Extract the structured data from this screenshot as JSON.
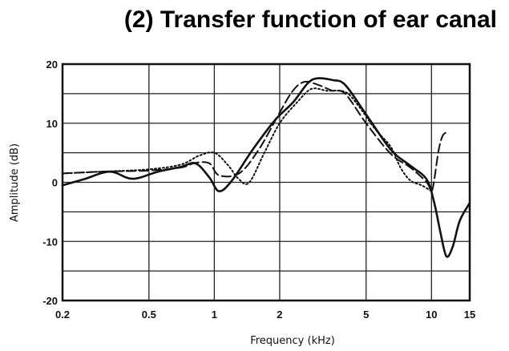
{
  "title": "(2) Transfer function of ear canal",
  "chart_data": {
    "type": "line",
    "title": "(2) Transfer function of ear canal",
    "xlabel": "Frequency (kHz)",
    "ylabel": "Amplitude (dB)",
    "xscale": "log",
    "xlim": [
      0.2,
      15
    ],
    "ylim": [
      -20,
      20
    ],
    "grid": true,
    "xticks": [
      0.2,
      0.5,
      1,
      2,
      5,
      10,
      15
    ],
    "xtick_labels": [
      "0.2",
      "0.5",
      "1",
      "2",
      "5",
      "10",
      "15"
    ],
    "yticks": [
      -20,
      -10,
      0,
      10,
      20
    ],
    "ytick_labels": [
      "-20",
      "-10",
      "0",
      "10",
      "20"
    ],
    "series": [
      {
        "style": "solid",
        "color": "#111111",
        "points": [
          [
            0.2,
            -0.5
          ],
          [
            0.25,
            0.5
          ],
          [
            0.33,
            1.8
          ],
          [
            0.42,
            0.6
          ],
          [
            0.55,
            1.8
          ],
          [
            0.7,
            2.6
          ],
          [
            0.82,
            3.2
          ],
          [
            0.95,
            0.8
          ],
          [
            1.05,
            -1.5
          ],
          [
            1.2,
            0.2
          ],
          [
            1.5,
            5.5
          ],
          [
            1.9,
            10.5
          ],
          [
            2.3,
            13.5
          ],
          [
            2.7,
            16.8
          ],
          [
            3.0,
            17.6
          ],
          [
            3.5,
            17.3
          ],
          [
            4.0,
            16.5
          ],
          [
            5.0,
            11.5
          ],
          [
            6.5,
            5.5
          ],
          [
            8.0,
            2.8
          ],
          [
            9.5,
            0.5
          ],
          [
            10.3,
            -3.5
          ],
          [
            11.0,
            -8.5
          ],
          [
            11.7,
            -12.5
          ],
          [
            12.5,
            -11.0
          ],
          [
            13.5,
            -6.5
          ],
          [
            15.0,
            -3.5
          ]
        ]
      },
      {
        "style": "dashed",
        "color": "#111111",
        "points": [
          [
            0.2,
            1.5
          ],
          [
            0.3,
            1.8
          ],
          [
            0.5,
            2.0
          ],
          [
            0.7,
            2.5
          ],
          [
            0.82,
            3.3
          ],
          [
            0.95,
            3.2
          ],
          [
            1.05,
            1.2
          ],
          [
            1.3,
            1.5
          ],
          [
            1.6,
            5.5
          ],
          [
            2.0,
            11.8
          ],
          [
            2.3,
            15.5
          ],
          [
            2.6,
            17.0
          ],
          [
            3.0,
            16.5
          ],
          [
            3.5,
            15.5
          ],
          [
            4.0,
            15.0
          ],
          [
            5.0,
            10.0
          ],
          [
            6.5,
            4.8
          ],
          [
            8.0,
            2.5
          ],
          [
            9.5,
            0.0
          ],
          [
            10.0,
            -1.5
          ],
          [
            10.3,
            0.5
          ],
          [
            10.8,
            5.5
          ],
          [
            11.3,
            8.0
          ],
          [
            12.0,
            8.5
          ]
        ]
      },
      {
        "style": "dotted",
        "color": "#111111",
        "points": [
          [
            0.2,
            1.5
          ],
          [
            0.3,
            1.8
          ],
          [
            0.5,
            2.2
          ],
          [
            0.7,
            3.0
          ],
          [
            0.85,
            4.5
          ],
          [
            1.0,
            5.0
          ],
          [
            1.15,
            3.0
          ],
          [
            1.3,
            0.5
          ],
          [
            1.45,
            0.0
          ],
          [
            1.7,
            5.0
          ],
          [
            2.0,
            10.0
          ],
          [
            2.4,
            13.5
          ],
          [
            2.8,
            15.8
          ],
          [
            3.3,
            15.5
          ],
          [
            4.0,
            15.3
          ],
          [
            4.6,
            13.0
          ],
          [
            5.5,
            9.0
          ],
          [
            6.5,
            6.0
          ],
          [
            7.2,
            2.5
          ],
          [
            8.0,
            0.3
          ],
          [
            9.0,
            -0.5
          ],
          [
            10.0,
            -1.5
          ]
        ]
      }
    ]
  }
}
